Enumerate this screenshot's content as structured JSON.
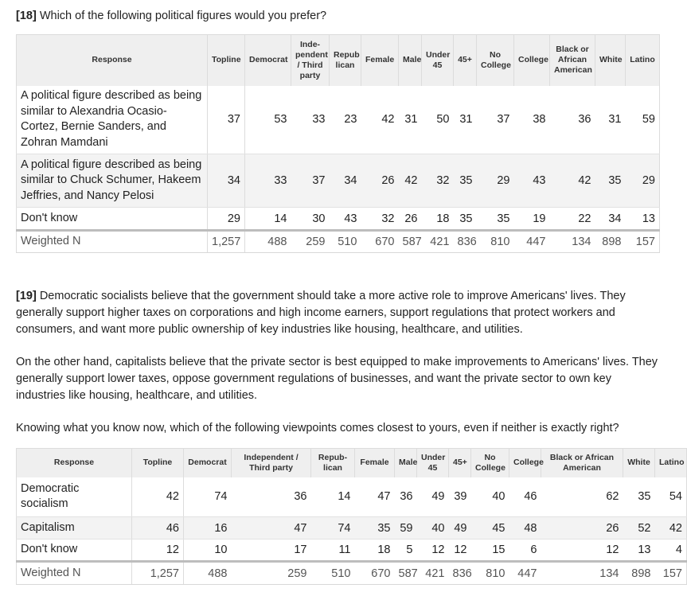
{
  "q18": {
    "num": "[18]",
    "text": "Which of the following political figures would you prefer?",
    "headers": [
      "Response",
      "Topline",
      "Democrat",
      "Inde-\npendent\n/ Third\nparty",
      "Repub\nlican",
      "Female",
      "Male",
      "Under\n45",
      "45+",
      "No\nCollege",
      "College",
      "Black or\nAfrican\nAmerican",
      "White",
      "Latino"
    ],
    "rows": [
      {
        "label": "A political figure described as being similar to Alexandria Ocasio-Cortez, Bernie Sanders, and Zohran Mamdani",
        "values": [
          "37",
          "53",
          "33",
          "23",
          "42",
          "31",
          "50",
          "31",
          "37",
          "38",
          "36",
          "31",
          "59"
        ]
      },
      {
        "label": "A political figure described as being similar to Chuck Schumer, Hakeem Jeffries, and Nancy Pelosi",
        "values": [
          "34",
          "33",
          "37",
          "34",
          "26",
          "42",
          "32",
          "35",
          "29",
          "43",
          "42",
          "35",
          "29"
        ]
      },
      {
        "label": "Don't know",
        "values": [
          "29",
          "14",
          "30",
          "43",
          "32",
          "26",
          "18",
          "35",
          "35",
          "19",
          "22",
          "34",
          "13"
        ]
      },
      {
        "label": "Weighted N",
        "values": [
          "1,257",
          "488",
          "259",
          "510",
          "670",
          "587",
          "421",
          "836",
          "810",
          "447",
          "134",
          "898",
          "157"
        ]
      }
    ]
  },
  "q19": {
    "num": "[19]",
    "para1": "Democratic socialists believe that the government should take a more active role to improve Americans' lives. They generally support higher taxes on corporations and high income earners, support regulations that protect workers and consumers, and want more public ownership of key industries like housing, healthcare, and utilities.",
    "para2": "On the other hand, capitalists believe that the private sector is best equipped to make improvements to Americans' lives. They generally support lower taxes, oppose government regulations of businesses, and want the private sector to own key industries like housing, healthcare, and utilities.",
    "para3": "Knowing what you know now, which of the following viewpoints comes closest to yours, even if neither is exactly right?",
    "headers": [
      "Response",
      "Topline",
      "Democrat",
      "Independent /\nThird party",
      "Repub-\nlican",
      "Female",
      "Male",
      "Under\n45",
      "45+",
      "No\nCollege",
      "College",
      "Black or African\nAmerican",
      "White",
      "Latino"
    ],
    "rows": [
      {
        "label": "Democratic socialism",
        "values": [
          "42",
          "74",
          "36",
          "14",
          "47",
          "36",
          "49",
          "39",
          "40",
          "46",
          "62",
          "35",
          "54"
        ]
      },
      {
        "label": "Capitalism",
        "values": [
          "46",
          "16",
          "47",
          "74",
          "35",
          "59",
          "40",
          "49",
          "45",
          "48",
          "26",
          "52",
          "42"
        ]
      },
      {
        "label": "Don't know",
        "values": [
          "12",
          "10",
          "17",
          "11",
          "18",
          "5",
          "12",
          "12",
          "15",
          "6",
          "12",
          "13",
          "4"
        ]
      },
      {
        "label": "Weighted N",
        "values": [
          "1,257",
          "488",
          "259",
          "510",
          "670",
          "587",
          "421",
          "836",
          "810",
          "447",
          "134",
          "898",
          "157"
        ]
      }
    ]
  }
}
